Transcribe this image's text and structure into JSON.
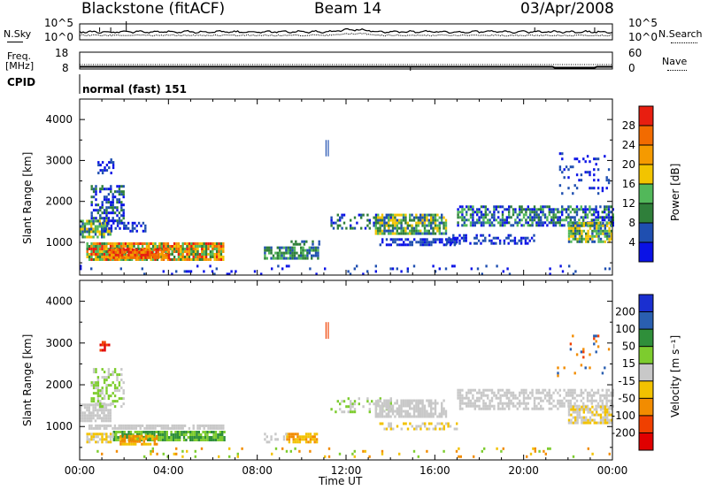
{
  "header": {
    "radar": "Blackstone (fitACF)",
    "beam": "Beam 14",
    "date": "03/Apr/2008"
  },
  "strips": {
    "nsky_label": "N.Sky",
    "nsearch_label": "N.Search",
    "noise_ticks_left": [
      "10^5",
      "10^0"
    ],
    "noise_ticks_right": [
      "10^5",
      "10^0"
    ],
    "freq_label_1": "Freq.",
    "freq_label_2": "[MHz]",
    "freq_ticks": [
      "18",
      "8"
    ],
    "nave_label": "Nave",
    "nave_ticks": [
      "60",
      "0"
    ],
    "cpid_label": "CPID",
    "cpid_value": "normal (fast) 151"
  },
  "colors": {
    "power": [
      "#0a12e6",
      "#1f4fb0",
      "#2f7f3a",
      "#52b85a",
      "#f2c400",
      "#f59a00",
      "#f26b00",
      "#e81e10"
    ],
    "velocity": [
      "#e00000",
      "#f04000",
      "#f28c00",
      "#f2c200",
      "#c8c8c8",
      "#7dcc2e",
      "#2f8f3a",
      "#2a5fb0",
      "#1a2fd0"
    ],
    "grey": "#c8c8c8"
  },
  "chart_data": [
    {
      "type": "heatmap",
      "title": "",
      "xlabel": "",
      "ylabel": "Slant Range [km]",
      "ylim": [
        200,
        4500
      ],
      "xlim": [
        0,
        24
      ],
      "yticks": [
        "4000",
        "3000",
        "2000",
        "1000"
      ],
      "colorbar_label": "Power [dB]",
      "colorbar_ticks": [
        "28",
        "24",
        "20",
        "16",
        "12",
        "8",
        "4"
      ],
      "echo_regions": [
        {
          "t0": 0.0,
          "t1": 1.4,
          "r0": 1150,
          "r1": 1550,
          "levels": [
            1,
            2,
            3,
            4
          ],
          "density": 0.8
        },
        {
          "t0": 0.5,
          "t1": 2.0,
          "r0": 1500,
          "r1": 2400,
          "levels": [
            0,
            1,
            2
          ],
          "density": 0.45
        },
        {
          "t0": 0.8,
          "t1": 1.5,
          "r0": 2700,
          "r1": 3050,
          "levels": [
            0,
            1
          ],
          "density": 0.4
        },
        {
          "t0": 0.3,
          "t1": 6.5,
          "r0": 600,
          "r1": 1000,
          "levels": [
            2,
            3,
            4,
            5,
            6,
            7
          ],
          "density": 0.9
        },
        {
          "t0": 1.3,
          "t1": 4.0,
          "r0": 600,
          "r1": 850,
          "levels": [
            5,
            6,
            7
          ],
          "density": 0.9
        },
        {
          "t0": 1.0,
          "t1": 3.0,
          "r0": 1300,
          "r1": 1500,
          "levels": [
            0,
            1
          ],
          "density": 0.5
        },
        {
          "t0": 8.3,
          "t1": 10.7,
          "r0": 600,
          "r1": 900,
          "levels": [
            1,
            2,
            3
          ],
          "density": 0.8
        },
        {
          "t0": 9.5,
          "t1": 10.8,
          "r0": 950,
          "r1": 1050,
          "levels": [
            1,
            2
          ],
          "density": 0.5
        },
        {
          "t0": 11.3,
          "t1": 14.0,
          "r0": 1350,
          "r1": 1700,
          "levels": [
            0,
            1,
            2
          ],
          "density": 0.3
        },
        {
          "t0": 13.3,
          "t1": 16.5,
          "r0": 1200,
          "r1": 1700,
          "levels": [
            1,
            2,
            3,
            4
          ],
          "density": 0.75
        },
        {
          "t0": 13.5,
          "t1": 17.0,
          "r0": 950,
          "r1": 1100,
          "levels": [
            0,
            1
          ],
          "density": 0.55
        },
        {
          "t0": 16.5,
          "t1": 20.5,
          "r0": 1000,
          "r1": 1200,
          "levels": [
            0,
            1
          ],
          "density": 0.4
        },
        {
          "t0": 17.0,
          "t1": 24.0,
          "r0": 1400,
          "r1": 1900,
          "levels": [
            0,
            1,
            2,
            3
          ],
          "density": 0.6
        },
        {
          "t0": 22.0,
          "t1": 24.0,
          "r0": 1000,
          "r1": 1500,
          "levels": [
            1,
            2,
            3,
            4
          ],
          "density": 0.75
        },
        {
          "t0": 21.5,
          "t1": 23.8,
          "r0": 2200,
          "r1": 3200,
          "levels": [
            0,
            1
          ],
          "density": 0.12
        },
        {
          "t0": 0.0,
          "t1": 24.0,
          "r0": 250,
          "r1": 450,
          "levels": [
            0,
            1
          ],
          "density": 0.07
        }
      ]
    },
    {
      "type": "heatmap",
      "title": "",
      "xlabel": "Time UT",
      "ylabel": "Slant Range [km]",
      "ylim": [
        200,
        4500
      ],
      "xlim": [
        0,
        24
      ],
      "yticks": [
        "4000",
        "3000",
        "2000",
        "1000"
      ],
      "xticks": [
        "00:00",
        "04:00",
        "08:00",
        "12:00",
        "16:00",
        "20:00",
        "00:00"
      ],
      "colorbar_label": "Velocity [m s⁻¹]",
      "colorbar_ticks": [
        "200",
        "100",
        "50",
        "15",
        "-15",
        "-50",
        "-100",
        "-200"
      ],
      "echo_regions": [
        {
          "t0": 0.0,
          "t1": 1.4,
          "r0": 1150,
          "r1": 1550,
          "levels": [
            4
          ],
          "density": 0.8
        },
        {
          "t0": 0.5,
          "t1": 2.0,
          "r0": 1500,
          "r1": 2400,
          "levels": [
            4,
            5
          ],
          "density": 0.4
        },
        {
          "t0": 0.8,
          "t1": 1.3,
          "r0": 2800,
          "r1": 3050,
          "levels": [
            0,
            1
          ],
          "density": 0.6
        },
        {
          "t0": 0.3,
          "t1": 6.5,
          "r0": 950,
          "r1": 1050,
          "levels": [
            4
          ],
          "density": 0.85
        },
        {
          "t0": 1.5,
          "t1": 6.5,
          "r0": 650,
          "r1": 900,
          "levels": [
            5,
            6
          ],
          "density": 0.85
        },
        {
          "t0": 0.3,
          "t1": 1.5,
          "r0": 600,
          "r1": 850,
          "levels": [
            4,
            3
          ],
          "density": 0.8
        },
        {
          "t0": 1.8,
          "t1": 3.5,
          "r0": 600,
          "r1": 800,
          "levels": [
            2,
            3
          ],
          "density": 0.8
        },
        {
          "t0": 9.3,
          "t1": 10.7,
          "r0": 600,
          "r1": 850,
          "levels": [
            2,
            3
          ],
          "density": 0.8
        },
        {
          "t0": 8.3,
          "t1": 9.3,
          "r0": 600,
          "r1": 850,
          "levels": [
            4
          ],
          "density": 0.4
        },
        {
          "t0": 11.3,
          "t1": 14.0,
          "r0": 1350,
          "r1": 1700,
          "levels": [
            4,
            5
          ],
          "density": 0.3
        },
        {
          "t0": 13.3,
          "t1": 16.5,
          "r0": 1250,
          "r1": 1650,
          "levels": [
            4
          ],
          "density": 0.75
        },
        {
          "t0": 13.5,
          "t1": 17.0,
          "r0": 950,
          "r1": 1100,
          "levels": [
            4,
            3
          ],
          "density": 0.4
        },
        {
          "t0": 17.0,
          "t1": 24.0,
          "r0": 1400,
          "r1": 1900,
          "levels": [
            4
          ],
          "density": 0.55
        },
        {
          "t0": 22.0,
          "t1": 24.0,
          "r0": 1100,
          "r1": 1500,
          "levels": [
            4,
            3
          ],
          "density": 0.7
        },
        {
          "t0": 21.5,
          "t1": 23.8,
          "r0": 2200,
          "r1": 3200,
          "levels": [
            2,
            7,
            1
          ],
          "density": 0.1
        },
        {
          "t0": 0.0,
          "t1": 24.0,
          "r0": 250,
          "r1": 500,
          "levels": [
            2,
            3,
            5
          ],
          "density": 0.07
        }
      ]
    }
  ]
}
